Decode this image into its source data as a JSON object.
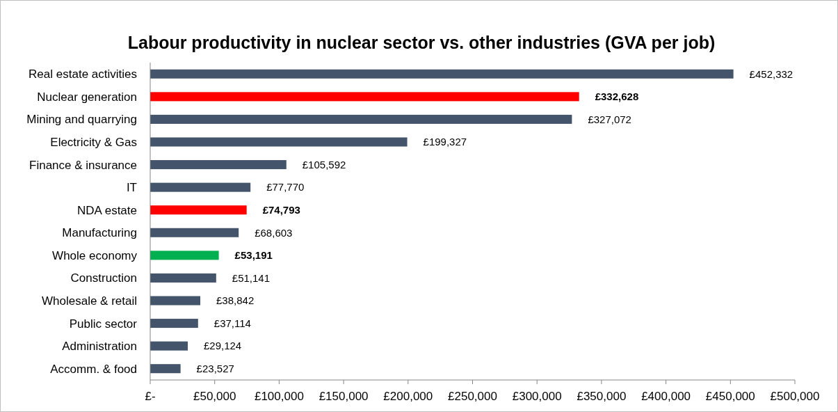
{
  "chart_data": {
    "type": "bar",
    "orientation": "horizontal",
    "title": "Labour productivity in nuclear sector vs. other industries (GVA per job)",
    "categories": [
      "Real estate activities",
      "Nuclear generation",
      "Mining and quarrying",
      "Electricity & Gas",
      "Finance & insurance",
      "IT",
      "NDA estate",
      "Manufacturing",
      "Whole economy",
      "Construction",
      "Wholesale & retail",
      "Public sector",
      "Administration",
      "Accomm. & food"
    ],
    "values": [
      452332,
      332628,
      327072,
      199327,
      105592,
      77770,
      74793,
      68603,
      53191,
      51141,
      38842,
      37114,
      29124,
      23527
    ],
    "colors": [
      "#44546a",
      "#ff0000",
      "#44546a",
      "#44546a",
      "#44546a",
      "#44546a",
      "#ff0000",
      "#44546a",
      "#00b050",
      "#44546a",
      "#44546a",
      "#44546a",
      "#44546a",
      "#44546a"
    ],
    "value_labels": [
      "£452,332",
      "£332,628",
      "£327,072",
      "£199,327",
      "£105,592",
      "£77,770",
      "£74,793",
      "£68,603",
      "£53,191",
      "£51,141",
      "£38,842",
      "£37,114",
      "£29,124",
      "£23,527"
    ],
    "xlim": [
      0,
      500000
    ],
    "xticks": [
      {
        "value": 0,
        "label": "£-"
      },
      {
        "value": 50000,
        "label": "£50,000"
      },
      {
        "value": 100000,
        "label": "£100,000"
      },
      {
        "value": 150000,
        "label": "£150,000"
      },
      {
        "value": 200000,
        "label": "£200,000"
      },
      {
        "value": 250000,
        "label": "£250,000"
      },
      {
        "value": 300000,
        "label": "£300,000"
      },
      {
        "value": 350000,
        "label": "£350,000"
      },
      {
        "value": 400000,
        "label": "£400,000"
      },
      {
        "value": 450000,
        "label": "£450,000"
      },
      {
        "value": 500000,
        "label": "£500,000"
      }
    ],
    "grid": false
  }
}
